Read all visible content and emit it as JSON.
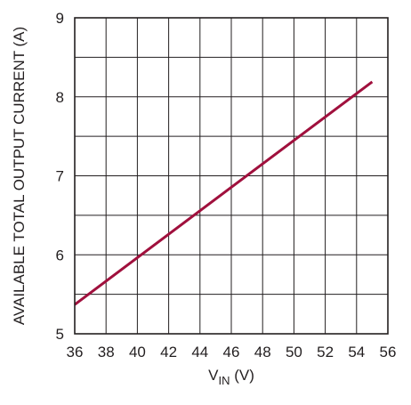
{
  "chart_data": {
    "type": "line",
    "title": "",
    "xlabel_main": "V",
    "xlabel_sub": "IN",
    "xlabel_unit": " (V)",
    "ylabel": "AVAILABLE TOTAL OUTPUT CURRENT (A)",
    "xlim": [
      36,
      56
    ],
    "ylim": [
      5,
      9
    ],
    "x_ticks": [
      "36",
      "38",
      "40",
      "42",
      "44",
      "46",
      "48",
      "50",
      "52",
      "54",
      "56"
    ],
    "y_ticks": [
      "5",
      "6",
      "7",
      "8",
      "9"
    ],
    "grid": true,
    "x_minor_divisions": 1,
    "y_minor_divisions": 2,
    "series": [
      {
        "color": "#a0103d",
        "x": [
          36,
          55
        ],
        "y": [
          5.37,
          8.19
        ]
      }
    ]
  }
}
